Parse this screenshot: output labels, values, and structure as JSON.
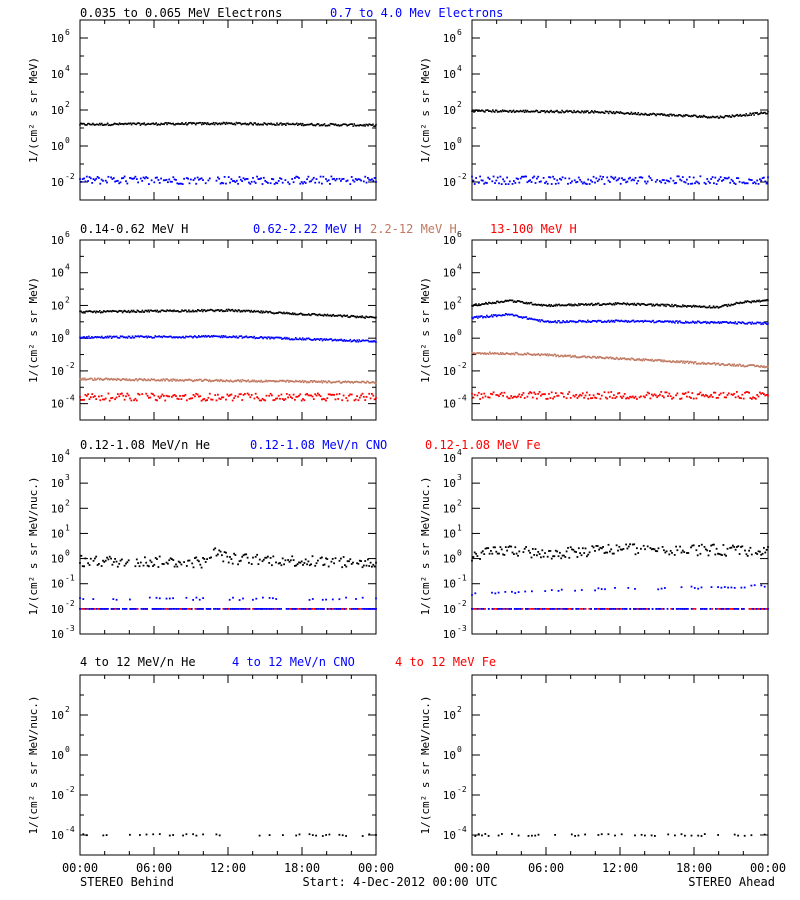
{
  "colors": {
    "black": "#000000",
    "blue": "#0000ff",
    "tan": "#c07860",
    "red": "#ff0000"
  },
  "row_titles": [
    [
      {
        "text": "0.035 to 0.065 MeV Electrons",
        "color": "#000000"
      },
      {
        "text": "0.7 to 4.0 Mev Electrons",
        "color": "#0000ff"
      }
    ],
    [
      {
        "text": "0.14-0.62 MeV H",
        "color": "#000000"
      },
      {
        "text": "0.62-2.22 MeV H",
        "color": "#0000ff"
      },
      {
        "text": "2.2-12 MeV H",
        "color": "#c07860"
      },
      {
        "text": "13-100 MeV H",
        "color": "#ff0000"
      }
    ],
    [
      {
        "text": "0.12-1.08 MeV/n He",
        "color": "#000000"
      },
      {
        "text": "0.12-1.08 MeV/n CNO",
        "color": "#0000ff"
      },
      {
        "text": "0.12-1.08 MeV Fe",
        "color": "#ff0000"
      }
    ],
    [
      {
        "text": "4 to 12 MeV/n He",
        "color": "#000000"
      },
      {
        "text": "4 to 12 MeV/n CNO",
        "color": "#0000ff"
      },
      {
        "text": "4 to 12 MeV Fe",
        "color": "#ff0000"
      }
    ]
  ],
  "footer": {
    "left": "STEREO Behind",
    "center": "Start:  4-Dec-2012 00:00 UTC",
    "right": "STEREO Ahead"
  },
  "chart_data": [
    {
      "type": "scatter",
      "row": 0,
      "spacecraft": "STEREO Behind",
      "ylabel": "1/(cm² s sr MeV)",
      "yscale": "log",
      "ylim_exp": [
        -3,
        7
      ],
      "yticks_exp": [
        -2,
        0,
        2,
        4,
        6
      ],
      "x_hours": [
        0,
        24
      ],
      "xticks": [
        "00:00",
        "06:00",
        "12:00",
        "18:00",
        "00:00"
      ],
      "series": [
        {
          "color": "#000000",
          "knots_hours": [
            0,
            12,
            24
          ],
          "log_values": [
            1.2,
            1.25,
            1.15
          ],
          "style": "dense"
        },
        {
          "color": "#0000ff",
          "knots_hours": [
            0,
            24
          ],
          "log_values": [
            -1.9,
            -1.9
          ],
          "style": "scatter"
        }
      ]
    },
    {
      "type": "scatter",
      "row": 0,
      "spacecraft": "STEREO Ahead",
      "ylabel": "1/(cm² s sr MeV)",
      "yscale": "log",
      "ylim_exp": [
        -3,
        7
      ],
      "yticks_exp": [
        -2,
        0,
        2,
        4,
        6
      ],
      "x_hours": [
        0,
        24
      ],
      "xticks": [
        "00:00",
        "06:00",
        "12:00",
        "18:00",
        "00:00"
      ],
      "series": [
        {
          "color": "#000000",
          "knots_hours": [
            0,
            10,
            20,
            24
          ],
          "log_values": [
            1.95,
            1.9,
            1.6,
            1.85
          ],
          "style": "dense"
        },
        {
          "color": "#0000ff",
          "knots_hours": [
            0,
            24
          ],
          "log_values": [
            -1.9,
            -1.9
          ],
          "style": "scatter"
        }
      ]
    },
    {
      "type": "scatter",
      "row": 1,
      "spacecraft": "STEREO Behind",
      "ylabel": "1/(cm² s sr MeV)",
      "yscale": "log",
      "ylim_exp": [
        -5,
        6
      ],
      "yticks_exp": [
        -4,
        -2,
        0,
        2,
        4,
        6
      ],
      "x_hours": [
        0,
        24
      ],
      "xticks": [
        "00:00",
        "06:00",
        "12:00",
        "18:00",
        "00:00"
      ],
      "series": [
        {
          "color": "#000000",
          "knots_hours": [
            0,
            12,
            24
          ],
          "log_values": [
            1.6,
            1.7,
            1.25
          ],
          "style": "dense"
        },
        {
          "color": "#0000ff",
          "knots_hours": [
            0,
            12,
            24
          ],
          "log_values": [
            0.05,
            0.1,
            -0.2
          ],
          "style": "dense"
        },
        {
          "color": "#c07860",
          "knots_hours": [
            0,
            24
          ],
          "log_values": [
            -2.5,
            -2.7
          ],
          "style": "dense"
        },
        {
          "color": "#ff0000",
          "knots_hours": [
            0,
            24
          ],
          "log_values": [
            -3.6,
            -3.6
          ],
          "style": "scatter"
        }
      ]
    },
    {
      "type": "scatter",
      "row": 1,
      "spacecraft": "STEREO Ahead",
      "ylabel": "1/(cm² s sr MeV)",
      "yscale": "log",
      "ylim_exp": [
        -5,
        6
      ],
      "yticks_exp": [
        -4,
        -2,
        0,
        2,
        4,
        6
      ],
      "x_hours": [
        0,
        3,
        6,
        12,
        21,
        24
      ],
      "xticks": [
        "00:00",
        "06:00",
        "12:00",
        "18:00",
        "00:00"
      ],
      "series": [
        {
          "color": "#000000",
          "knots_hours": [
            0,
            3,
            6,
            12,
            20,
            22,
            24
          ],
          "log_values": [
            2.0,
            2.3,
            2.0,
            2.1,
            1.9,
            2.2,
            2.3
          ],
          "style": "dense"
        },
        {
          "color": "#0000ff",
          "knots_hours": [
            0,
            3,
            6,
            12,
            20,
            24
          ],
          "log_values": [
            1.25,
            1.45,
            1.0,
            1.05,
            0.95,
            0.9
          ],
          "style": "dense"
        },
        {
          "color": "#c07860",
          "knots_hours": [
            0,
            4,
            12,
            24
          ],
          "log_values": [
            -0.9,
            -0.95,
            -1.25,
            -1.75
          ],
          "style": "dense"
        },
        {
          "color": "#ff0000",
          "knots_hours": [
            0,
            24
          ],
          "log_values": [
            -3.5,
            -3.5
          ],
          "style": "scatter"
        }
      ]
    },
    {
      "type": "scatter",
      "row": 2,
      "spacecraft": "STEREO Behind",
      "ylabel": "1/(cm² s sr MeV/nuc.)",
      "yscale": "log",
      "ylim_exp": [
        -3,
        4
      ],
      "yticks_exp": [
        -3,
        -2,
        -1,
        0,
        1,
        2,
        3,
        4
      ],
      "x_hours": [
        0,
        24
      ],
      "xticks": [
        "00:00",
        "06:00",
        "12:00",
        "18:00",
        "00:00"
      ],
      "series": [
        {
          "color": "#000000",
          "knots_hours": [
            0,
            10,
            11,
            12,
            24
          ],
          "log_values": [
            -0.1,
            -0.15,
            0.25,
            0.0,
            -0.2
          ],
          "style": "scatter"
        },
        {
          "color": "#0000ff",
          "knots_hours": [
            0,
            24
          ],
          "log_values": [
            -1.6,
            -1.6
          ],
          "style": "sparse"
        },
        {
          "color": "#ff0000",
          "knots_hours": [
            0,
            24
          ],
          "log_values": [
            -2.0,
            -2.0
          ],
          "style": "baseline"
        },
        {
          "color": "#0000ff",
          "knots_hours": [
            0,
            24
          ],
          "log_values": [
            -2.0,
            -2.0
          ],
          "style": "baseline"
        }
      ]
    },
    {
      "type": "scatter",
      "row": 2,
      "spacecraft": "STEREO Ahead",
      "ylabel": "1/(cm² s sr MeV/nuc.)",
      "yscale": "log",
      "ylim_exp": [
        -3,
        4
      ],
      "yticks_exp": [
        -3,
        -2,
        -1,
        0,
        1,
        2,
        3,
        4
      ],
      "x_hours": [
        0,
        24
      ],
      "xticks": [
        "00:00",
        "06:00",
        "12:00",
        "18:00",
        "00:00"
      ],
      "series": [
        {
          "color": "#000000",
          "knots_hours": [
            0,
            3,
            6,
            12,
            24
          ],
          "log_values": [
            0.1,
            0.35,
            0.15,
            0.4,
            0.3
          ],
          "style": "scatter"
        },
        {
          "color": "#0000ff",
          "knots_hours": [
            0,
            12,
            24
          ],
          "log_values": [
            -1.4,
            -1.2,
            -1.1
          ],
          "style": "sparse"
        },
        {
          "color": "#ff0000",
          "knots_hours": [
            0,
            24
          ],
          "log_values": [
            -2.0,
            -2.0
          ],
          "style": "baseline"
        },
        {
          "color": "#0000ff",
          "knots_hours": [
            0,
            24
          ],
          "log_values": [
            -2.0,
            -2.0
          ],
          "style": "baseline"
        }
      ]
    },
    {
      "type": "scatter",
      "row": 3,
      "spacecraft": "STEREO Behind",
      "ylabel": "1/(cm² s sr MeV/nuc.)",
      "yscale": "log",
      "ylim_exp": [
        -5,
        4
      ],
      "yticks_exp": [
        -4,
        -2,
        0,
        2
      ],
      "x_hours": [
        0,
        24
      ],
      "xticks": [
        "00:00",
        "06:00",
        "12:00",
        "18:00",
        "00:00"
      ],
      "series": [
        {
          "color": "#000000",
          "knots_hours": [
            0,
            24
          ],
          "log_values": [
            -4.0,
            -4.0
          ],
          "style": "sparse"
        }
      ]
    },
    {
      "type": "scatter",
      "row": 3,
      "spacecraft": "STEREO Ahead",
      "ylabel": "1/(cm² s sr MeV/nuc.)",
      "yscale": "log",
      "ylim_exp": [
        -5,
        4
      ],
      "yticks_exp": [
        -4,
        -2,
        0,
        2
      ],
      "x_hours": [
        0,
        24
      ],
      "xticks": [
        "00:00",
        "06:00",
        "12:00",
        "18:00",
        "00:00"
      ],
      "series": [
        {
          "color": "#000000",
          "knots_hours": [
            0,
            24
          ],
          "log_values": [
            -4.0,
            -4.0
          ],
          "style": "sparse"
        }
      ]
    }
  ]
}
